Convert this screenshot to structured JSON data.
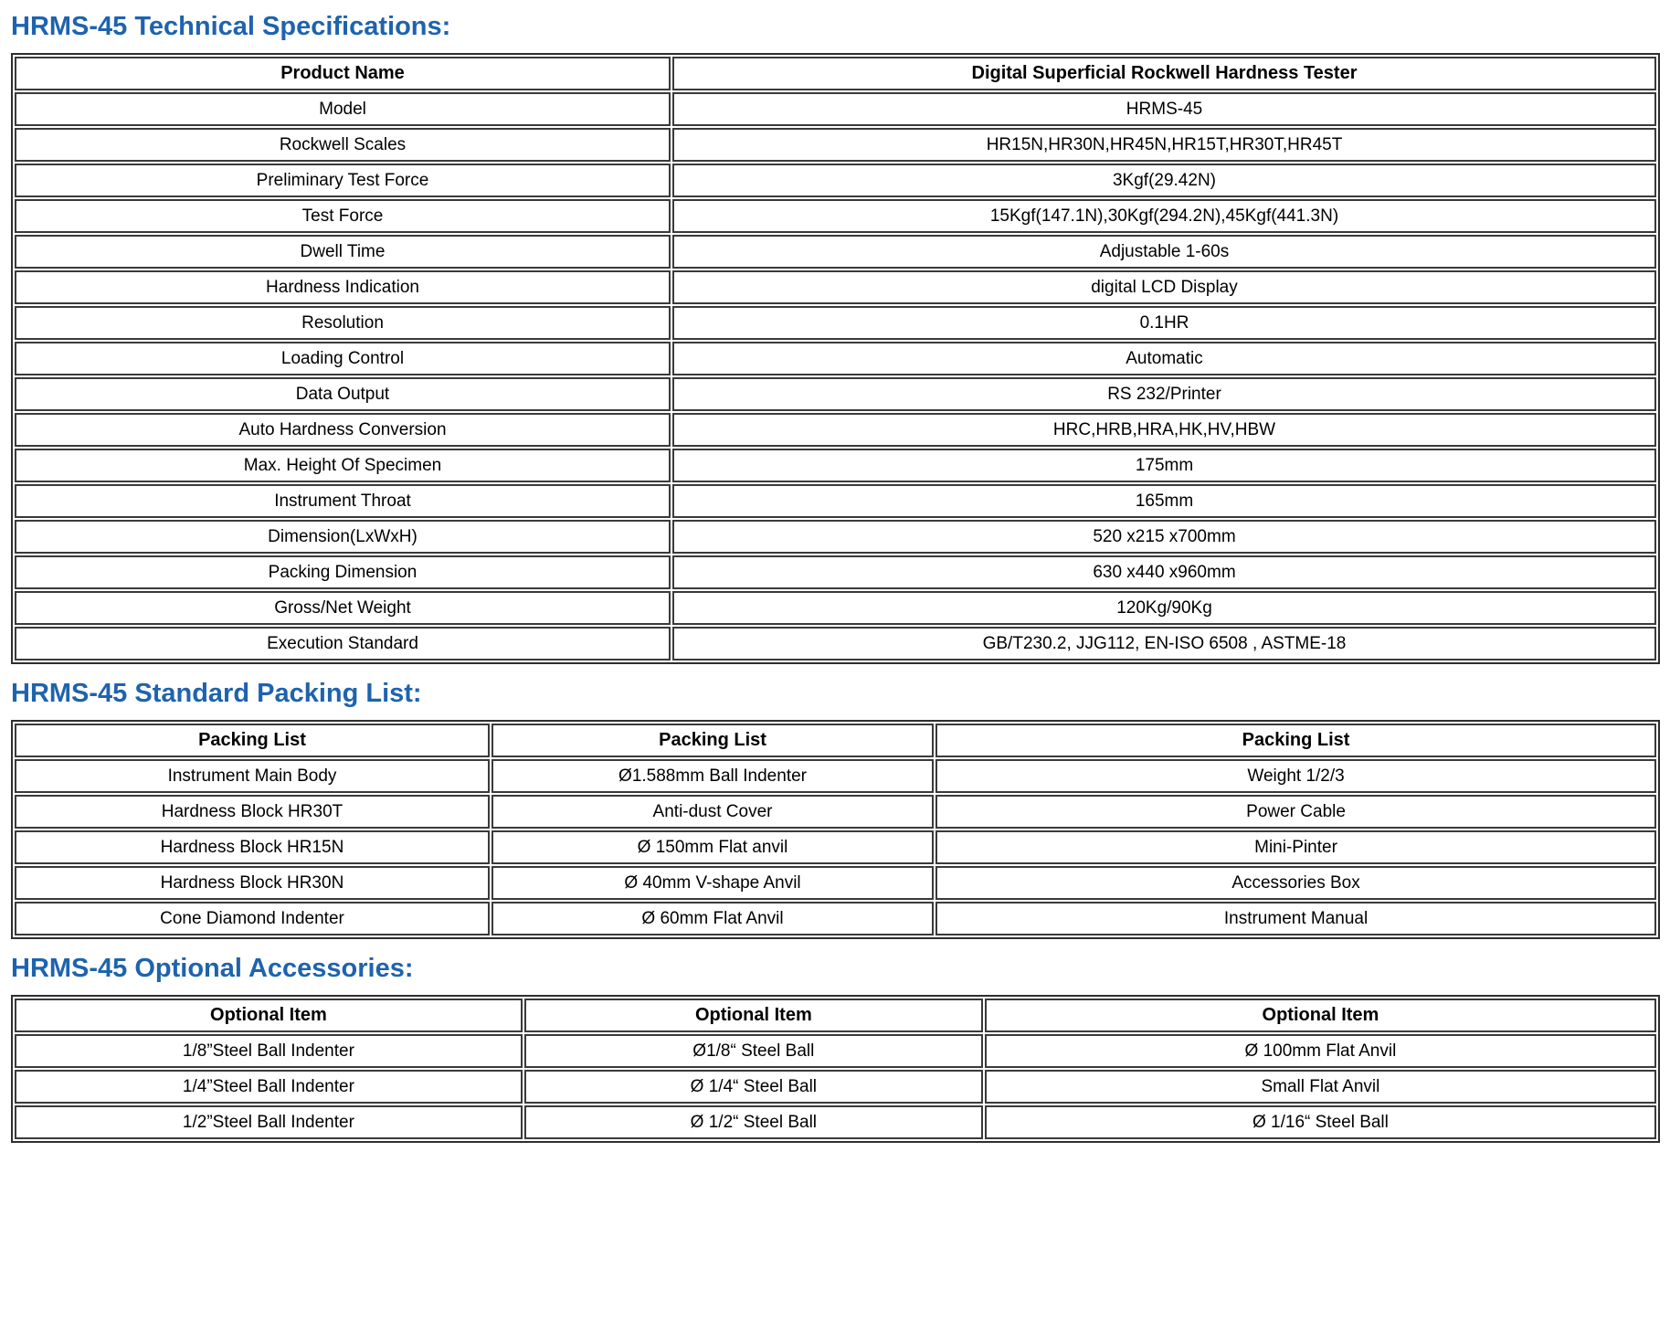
{
  "page": {
    "accent_color": "#1E63AE",
    "border_color": "#3a3a3a",
    "background_color": "#ffffff"
  },
  "sections": [
    {
      "heading": "HRMS-45 Technical Specifications:",
      "table": {
        "header": [
          "Product Name",
          "Digital Superficial Rockwell Hardness Tester"
        ],
        "rows": [
          [
            "Model",
            "HRMS-45"
          ],
          [
            "Rockwell Scales",
            "HR15N,HR30N,HR45N,HR15T,HR30T,HR45T"
          ],
          [
            "Preliminary Test Force",
            "3Kgf(29.42N)"
          ],
          [
            "Test Force",
            "15Kgf(147.1N),30Kgf(294.2N),45Kgf(441.3N)"
          ],
          [
            "Dwell Time",
            "Adjustable 1-60s"
          ],
          [
            "Hardness Indication",
            "digital LCD Display"
          ],
          [
            "Resolution",
            "0.1HR"
          ],
          [
            "Loading Control",
            "Automatic"
          ],
          [
            "Data Output",
            "RS 232/Printer"
          ],
          [
            "Auto Hardness Conversion",
            "HRC,HRB,HRA,HK,HV,HBW"
          ],
          [
            "Max. Height Of Specimen",
            "175mm"
          ],
          [
            "Instrument Throat",
            "165mm"
          ],
          [
            "Dimension(LxWxH)",
            "520 x215 x700mm"
          ],
          [
            "Packing Dimension",
            "630 x440 x960mm"
          ],
          [
            "Gross/Net Weight",
            "120Kg/90Kg"
          ],
          [
            "Execution Standard",
            "GB/T230.2, JJG112, EN-ISO 6508 , ASTME-18"
          ]
        ]
      }
    },
    {
      "heading": "HRMS-45 Standard Packing List:",
      "table": {
        "header": [
          "Packing List",
          "Packing List",
          "Packing List"
        ],
        "rows": [
          [
            "Instrument Main Body",
            "Ø1.588mm Ball Indenter",
            "Weight 1/2/3"
          ],
          [
            "Hardness Block HR30T",
            "Anti-dust Cover",
            "Power Cable"
          ],
          [
            "Hardness Block HR15N",
            "Ø 150mm Flat anvil",
            "Mini-Pinter"
          ],
          [
            "Hardness Block HR30N",
            "Ø 40mm V-shape Anvil",
            "Accessories Box"
          ],
          [
            "Cone Diamond Indenter",
            "Ø 60mm Flat Anvil",
            "Instrument Manual"
          ]
        ]
      }
    },
    {
      "heading": "HRMS-45 Optional Accessories:",
      "table": {
        "header": [
          "Optional Item",
          "Optional Item",
          "Optional Item"
        ],
        "rows": [
          [
            "1/8”Steel Ball Indenter",
            "Ø1/8“ Steel Ball",
            "Ø 100mm Flat Anvil"
          ],
          [
            "1/4”Steel Ball Indenter",
            "Ø 1/4“ Steel Ball",
            "Small Flat Anvil"
          ],
          [
            "1/2”Steel Ball Indenter",
            "Ø 1/2“ Steel Ball",
            "Ø 1/16“ Steel Ball"
          ]
        ]
      }
    }
  ]
}
